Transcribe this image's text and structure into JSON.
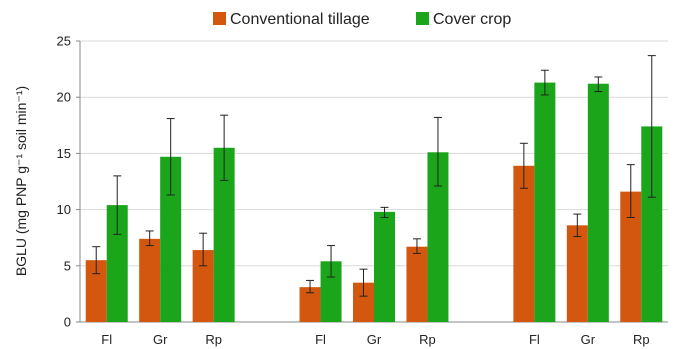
{
  "chart_data": {
    "type": "bar",
    "title": "",
    "xlabel": "",
    "ylabel": "BGLU (mg PNP g⁻¹ soil min⁻¹)",
    "ylim": [
      0,
      25
    ],
    "yticks": [
      0,
      5,
      10,
      15,
      20,
      25
    ],
    "grid": true,
    "legend_position": "top",
    "error_bars": true,
    "categories": [
      "Fl",
      "Gr",
      "Rp",
      "Fl",
      "Gr",
      "Rp",
      "Fl",
      "Gr",
      "Rp"
    ],
    "groups": [
      {
        "categories": [
          "Fl",
          "Gr",
          "Rp"
        ]
      },
      {
        "categories": [
          "Fl",
          "Gr",
          "Rp"
        ]
      },
      {
        "categories": [
          "Fl",
          "Gr",
          "Rp"
        ]
      }
    ],
    "series": [
      {
        "name": "Conventional tillage",
        "color": "#d4570f",
        "values": [
          5.5,
          7.4,
          6.4,
          3.1,
          3.5,
          6.7,
          13.9,
          8.6,
          11.6
        ],
        "error_low": [
          4.3,
          6.8,
          5.0,
          2.6,
          2.3,
          6.1,
          11.9,
          7.6,
          9.3
        ],
        "error_high": [
          6.7,
          8.1,
          7.9,
          3.7,
          4.7,
          7.4,
          15.9,
          9.6,
          14.0
        ]
      },
      {
        "name": "Cover crop",
        "color": "#1aa51a",
        "values": [
          10.4,
          14.7,
          15.5,
          5.4,
          9.8,
          15.1,
          21.3,
          21.2,
          17.4
        ],
        "error_low": [
          7.8,
          11.3,
          12.6,
          4.0,
          9.3,
          12.1,
          20.2,
          20.5,
          11.1
        ],
        "error_high": [
          13.0,
          18.1,
          18.4,
          6.8,
          10.2,
          18.2,
          22.4,
          21.8,
          23.7
        ]
      }
    ]
  }
}
